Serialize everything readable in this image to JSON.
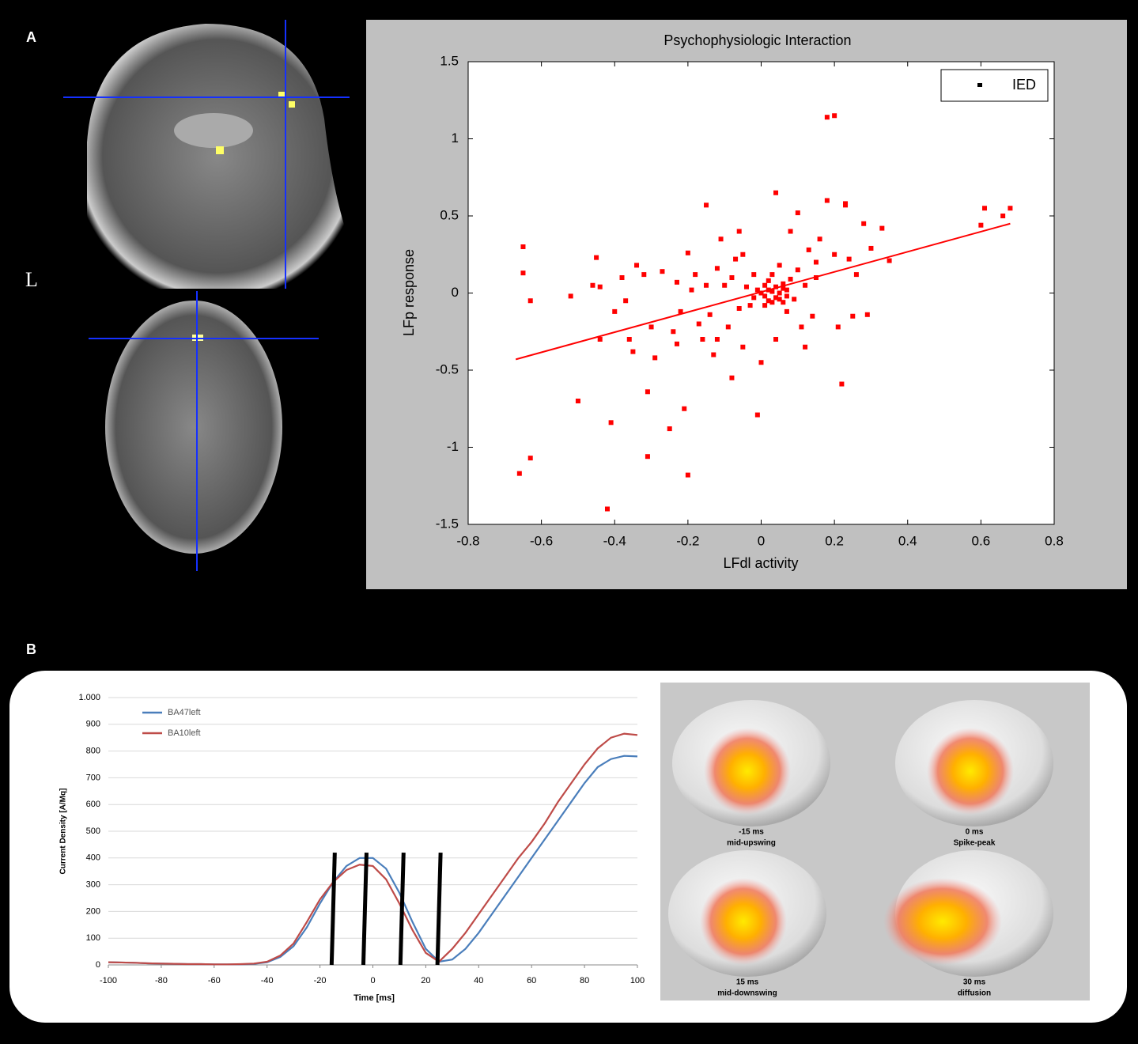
{
  "panel_labels": {
    "a": "A",
    "b": "B",
    "orientation": "L"
  },
  "brain_maps": [
    {
      "time": "-15 ms",
      "phase": "mid-upswing"
    },
    {
      "time": "0 ms",
      "phase": "Spike-peak"
    },
    {
      "time": "15 ms",
      "phase": "mid-downswing"
    },
    {
      "time": "30 ms",
      "phase": "diffusion"
    }
  ],
  "chart_data": [
    {
      "type": "scatter",
      "title": "Psychophysiologic Interaction",
      "x_label": "LFdl activity",
      "y_label": "LFp response",
      "xlim": [
        -0.8,
        0.8
      ],
      "ylim": [
        -1.5,
        1.5
      ],
      "xticks": [
        -0.8,
        -0.6,
        -0.4,
        -0.2,
        0,
        0.2,
        0.4,
        0.6,
        0.8
      ],
      "yticks": [
        -1.5,
        -1,
        -0.5,
        0,
        0.5,
        1,
        1.5
      ],
      "legend": "upper right",
      "legend_marker_color": "#000000",
      "x": [
        -0.66,
        -0.63,
        -0.65,
        -0.65,
        -0.63,
        -0.52,
        -0.5,
        -0.46,
        -0.45,
        -0.44,
        -0.44,
        -0.42,
        -0.41,
        -0.4,
        -0.38,
        -0.37,
        -0.36,
        -0.35,
        -0.34,
        -0.32,
        -0.31,
        -0.31,
        -0.3,
        -0.29,
        -0.27,
        -0.25,
        -0.24,
        -0.23,
        -0.22,
        -0.21,
        -0.2,
        -0.2,
        -0.19,
        -0.18,
        -0.17,
        -0.16,
        -0.15,
        -0.15,
        -0.14,
        -0.13,
        -0.12,
        -0.12,
        -0.11,
        -0.1,
        -0.09,
        -0.08,
        -0.08,
        -0.07,
        -0.06,
        -0.05,
        -0.05,
        -0.04,
        -0.03,
        -0.02,
        -0.02,
        -0.01,
        -0.01,
        0,
        0,
        0.01,
        0.01,
        0.02,
        0.02,
        0.03,
        0.03,
        0.04,
        0.04,
        0.04,
        0.05,
        0.05,
        0.06,
        0.06,
        0.07,
        0.07,
        0.08,
        0.08,
        0.09,
        0.1,
        0.1,
        0.11,
        0.12,
        0.12,
        0.13,
        0.14,
        0.15,
        0.16,
        0.18,
        0.18,
        0.2,
        0.2,
        0.21,
        0.22,
        0.23,
        0.24,
        0.25,
        0.26,
        0.28,
        0.29,
        0.3,
        0.33,
        0.35,
        0.6,
        0.61,
        0.66,
        0.68,
        0.04,
        0.23,
        -0.23,
        0.15,
        -0.06,
        0.02,
        0.05,
        0.06,
        0.03,
        0.07,
        0.01
      ],
      "series": [
        {
          "name": "IED",
          "color": "#ff0000",
          "values": [
            -1.17,
            -1.07,
            0.3,
            0.13,
            -0.05,
            -0.02,
            -0.7,
            0.05,
            0.23,
            0.04,
            -0.3,
            -1.4,
            -0.84,
            -0.12,
            0.1,
            -0.05,
            -0.3,
            -0.38,
            0.18,
            0.12,
            -0.64,
            -1.06,
            -0.22,
            -0.42,
            0.14,
            -0.88,
            -0.25,
            0.07,
            -0.12,
            -0.75,
            -1.18,
            0.26,
            0.02,
            0.12,
            -0.2,
            -0.3,
            0.57,
            0.05,
            -0.14,
            -0.4,
            0.16,
            -0.3,
            0.35,
            0.05,
            -0.22,
            0.1,
            -0.55,
            0.22,
            -0.1,
            0.25,
            -0.35,
            0.04,
            -0.08,
            0.12,
            -0.03,
            -0.79,
            0.02,
            0,
            -0.45,
            0.05,
            -0.02,
            0.08,
            -0.05,
            0.01,
            0.12,
            -0.03,
            0.04,
            -0.3,
            0,
            0.18,
            -0.06,
            0.06,
            0.02,
            -0.12,
            0.09,
            0.4,
            -0.04,
            0.52,
            0.15,
            -0.22,
            -0.35,
            0.05,
            0.28,
            -0.15,
            0.1,
            0.35,
            0.6,
            1.14,
            1.15,
            0.25,
            -0.22,
            -0.59,
            0.58,
            0.22,
            -0.15,
            0.12,
            0.45,
            -0.14,
            0.29,
            0.42,
            0.21,
            0.44,
            0.55,
            0.5,
            0.55,
            0.65,
            0.57,
            -0.33,
            0.2,
            0.4,
            0.02,
            -0.04,
            0.03,
            -0.06,
            -0.02,
            -0.08
          ]
        }
      ],
      "fit": {
        "x": [
          -0.67,
          0.68
        ],
        "values": [
          -0.43,
          0.45
        ]
      }
    },
    {
      "type": "line",
      "x_label": "Time [ms]",
      "y_label": "Current Density [A/Mq]",
      "xlim": [
        -100,
        100
      ],
      "ylim": [
        0,
        1000
      ],
      "xticks": [
        -100,
        -80,
        -60,
        -40,
        -20,
        0,
        20,
        40,
        60,
        80,
        100
      ],
      "yticks": [
        0,
        100,
        200,
        300,
        400,
        500,
        600,
        700,
        800,
        900,
        {
          "value": 1000,
          "label": "1.000"
        }
      ],
      "grid": true,
      "legend": "upper left",
      "x": [
        -100,
        -95,
        -90,
        -85,
        -80,
        -75,
        -70,
        -65,
        -60,
        -55,
        -50,
        -45,
        -40,
        -35,
        -30,
        -25,
        -20,
        -15,
        -10,
        -5,
        0,
        5,
        10,
        15,
        20,
        25,
        30,
        35,
        40,
        45,
        50,
        55,
        60,
        65,
        70,
        75,
        80,
        85,
        90,
        95,
        100
      ],
      "series": [
        {
          "name": "BA47left",
          "color": "#4a7ebb",
          "values": [
            10,
            9,
            8,
            6,
            5,
            4,
            3,
            3,
            2,
            2,
            2,
            4,
            10,
            30,
            70,
            140,
            230,
            310,
            370,
            400,
            400,
            360,
            270,
            160,
            60,
            12,
            20,
            60,
            120,
            190,
            260,
            330,
            400,
            470,
            540,
            610,
            680,
            740,
            770,
            782,
            780
          ]
        },
        {
          "name": "BA10left",
          "color": "#be4b48",
          "values": [
            10,
            9,
            8,
            6,
            5,
            4,
            3,
            3,
            2,
            2,
            3,
            5,
            12,
            35,
            80,
            160,
            245,
            310,
            355,
            375,
            370,
            320,
            230,
            130,
            45,
            12,
            60,
            120,
            190,
            260,
            330,
            400,
            460,
            530,
            610,
            680,
            750,
            810,
            850,
            865,
            860
          ]
        }
      ],
      "event_markers": {
        "x": [
          -15,
          -3,
          11,
          25
        ],
        "top": 420
      }
    }
  ]
}
